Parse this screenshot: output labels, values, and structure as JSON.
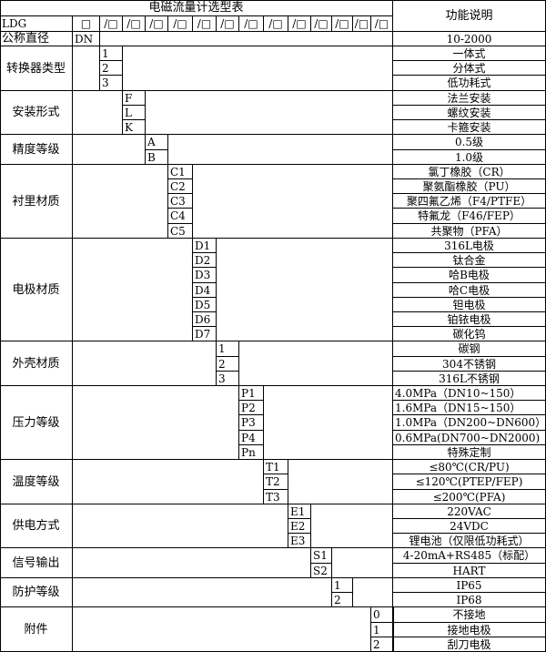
{
  "header": {
    "title": "电磁流量计选型表",
    "function_header": "功能说明",
    "model_prefix": "LDG",
    "first_box": "□",
    "slot": "/□"
  },
  "nominal": {
    "label": "公称直径",
    "code": "DN",
    "desc": "10-2000"
  },
  "groups": [
    {
      "label": "转换器类型",
      "col": 0,
      "codes": [
        "1",
        "2",
        "3"
      ],
      "descs": [
        "一体式",
        "分体式",
        "低功耗式"
      ]
    },
    {
      "label": "安装形式",
      "col": 1,
      "codes": [
        "F",
        "L",
        "K"
      ],
      "descs": [
        "法兰安装",
        "螺纹安装",
        "卡箍安装"
      ]
    },
    {
      "label": "精度等级",
      "col": 2,
      "codes": [
        "A",
        "B"
      ],
      "descs": [
        "0.5级",
        "1.0级"
      ]
    },
    {
      "label": "衬里材质",
      "col": 3,
      "codes": [
        "C1",
        "C2",
        "C3",
        "C4",
        "C5"
      ],
      "descs": [
        "氯丁橡胶（CR）",
        "聚氨酯橡胶（PU）",
        "聚四氟乙烯（F4/PTFE）",
        "特氟龙（F46/FEP）",
        "共聚物（PFA）"
      ]
    },
    {
      "label": "电极材质",
      "col": 4,
      "codes": [
        "D1",
        "D2",
        "D3",
        "D4",
        "D5",
        "D6",
        "D7"
      ],
      "descs": [
        "316L电极",
        "钛合金",
        "哈B电极",
        "哈C电极",
        "钽电极",
        "铂铱电极",
        "碳化钨"
      ]
    },
    {
      "label": "外壳材质",
      "col": 5,
      "codes": [
        "1",
        "2",
        "3"
      ],
      "descs": [
        "碳钢",
        "304不锈钢",
        "316L不锈钢"
      ]
    },
    {
      "label": "压力等级",
      "col": 6,
      "codes": [
        "P1",
        "P2",
        "P3",
        "P4",
        "Pn"
      ],
      "descs": [
        "4.0MPa（DN10~150）",
        "1.6MPa（DN15~150）",
        "1.0MPa（DN200~DN600）",
        "0.6MPa(DN700~DN2000)",
        "特殊定制"
      ],
      "left": [
        true,
        true,
        true,
        true,
        false
      ]
    },
    {
      "label": "温度等级",
      "col": 7,
      "codes": [
        "T1",
        "T2",
        "T3"
      ],
      "descs": [
        "≤80℃(CR/PU)",
        "≤120℃(PTEP/FEP)",
        "≤200℃(PFA)"
      ]
    },
    {
      "label": "供电方式",
      "col": 8,
      "codes": [
        "E1",
        "E2",
        "E3"
      ],
      "descs": [
        "220VAC",
        "24VDC",
        "锂电池（仅限低功耗式）"
      ]
    },
    {
      "label": "信号输出",
      "col": 9,
      "codes": [
        "S1",
        "S2"
      ],
      "descs": [
        "4-20mA+RS485（标配）",
        "HART"
      ]
    },
    {
      "label": "防护等级",
      "col": 10,
      "codes": [
        "1",
        "2"
      ],
      "descs": [
        "IP65",
        "IP68"
      ]
    },
    {
      "label": "附件",
      "col": 12,
      "codes": [
        "0",
        "1",
        "2"
      ],
      "descs": [
        "不接地",
        "接地电极",
        "刮刀电极"
      ]
    }
  ]
}
